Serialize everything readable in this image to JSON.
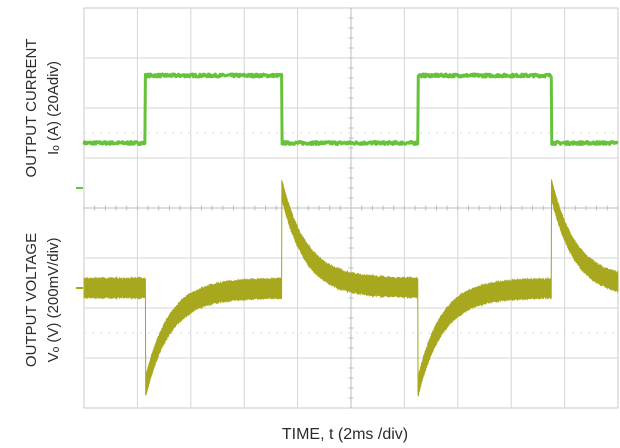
{
  "chart_data": {
    "type": "line",
    "title": "",
    "xlabel": "TIME, t (2ms /div)",
    "ylabels": {
      "current_line1": "OUTPUT CURRENT",
      "current_line2": "Iₒ (A)  (20Adiv)",
      "voltage_line1": "OUTPUT  VOLTAGE",
      "voltage_line2": "Vₒ (V) (200mV/div)"
    },
    "x_divisions": 10,
    "y_divisions": 8,
    "grid": true,
    "x_range_div": [
      0,
      10
    ],
    "series": [
      {
        "channel": "current",
        "color": "#66c23a",
        "unit_per_div": "20 A",
        "low_div": 5.3,
        "high_div": 6.65,
        "edges_div": [
          1.15,
          3.7,
          6.25,
          8.75
        ],
        "starts_low": true
      },
      {
        "channel": "voltage",
        "color": "#a8a81e",
        "unit_per_div": "200 mV",
        "baseline_div": 2.4,
        "undershoot_div": 0.4,
        "overshoot_div": 4.4,
        "ringing_amplitude_div": 0.18,
        "recovery_time_constant_div": 0.45,
        "edges_div": [
          1.15,
          3.7,
          6.25,
          8.75
        ]
      }
    ],
    "markers": [
      {
        "name": "current-ground-marker",
        "level_div": 4.4
      },
      {
        "name": "voltage-ground-marker",
        "level_div": 2.4
      }
    ]
  }
}
